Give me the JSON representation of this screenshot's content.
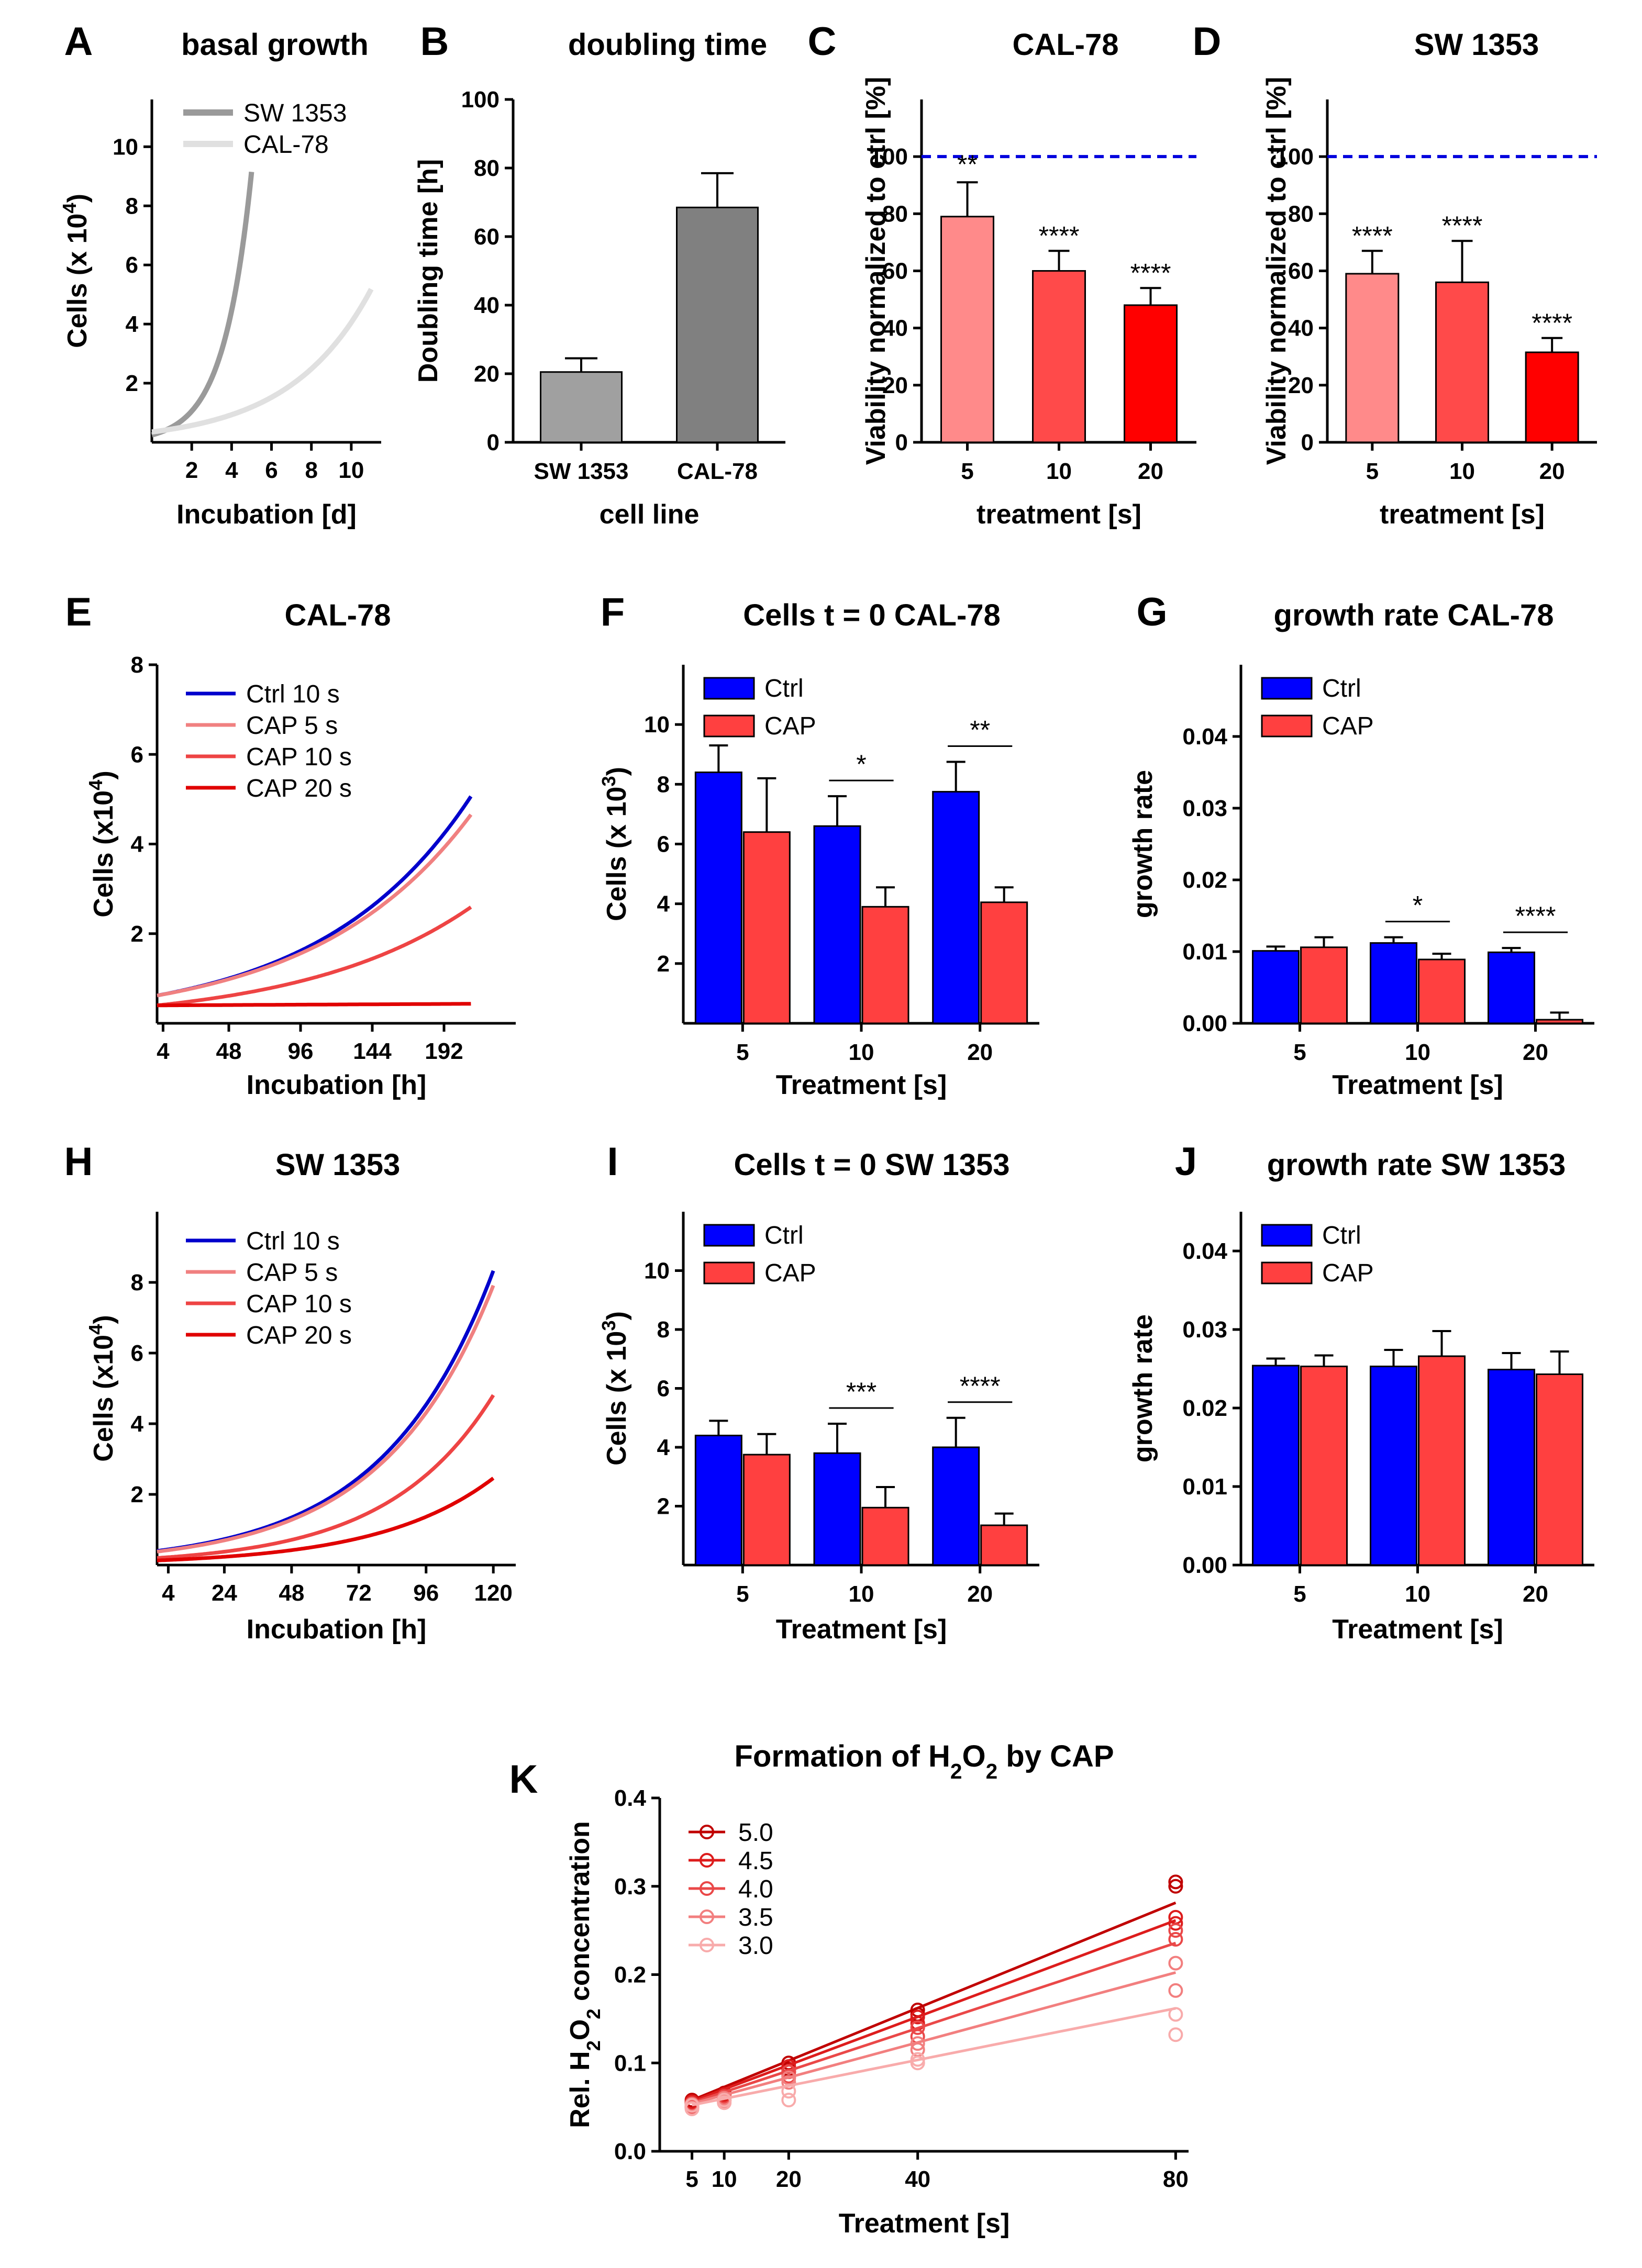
{
  "chart_data": [
    {
      "id": "A",
      "type": "line",
      "letter": "A",
      "title": "basal growth",
      "xlabel": "Incubation [d]",
      "ylabel": "Cells (x 10",
      "ylabel_sup": "4",
      "ylabel_tail": ")",
      "xlim": [
        0,
        11.5
      ],
      "ylim": [
        0,
        11.6
      ],
      "xticks": [
        2,
        4,
        6,
        8,
        10
      ],
      "yticks": [
        2,
        4,
        6,
        8,
        10
      ],
      "series": [
        {
          "name": "SW 1353",
          "color": "#9a9a9a",
          "model": "exp",
          "y0": 0.25,
          "k": 0.72,
          "x_start": 0,
          "x_end": 5
        },
        {
          "name": "CAL-78",
          "color": "#e0e0e0",
          "model": "exp",
          "y0": 0.35,
          "k": 0.245,
          "x_start": 0,
          "x_end": 11
        }
      ]
    },
    {
      "id": "B",
      "type": "bar",
      "letter": "B",
      "title": "doubling time",
      "xlabel": "cell line",
      "ylabel": "Doubling time [h]",
      "categories": [
        "SW 1353",
        "CAL-78"
      ],
      "values": [
        20.5,
        68.5
      ],
      "errors": [
        4,
        10
      ],
      "colors": [
        "#a0a0a0",
        "#808080"
      ],
      "ylim": [
        0,
        100
      ],
      "yticks": [
        0,
        20,
        40,
        60,
        80,
        100
      ]
    },
    {
      "id": "C",
      "type": "bar",
      "letter": "C",
      "title": "CAL-78",
      "xlabel": "treatment [s]",
      "ylabel": "Viability normalized to ctrl [%]",
      "categories": [
        "5",
        "10",
        "20"
      ],
      "values": [
        79,
        60,
        48
      ],
      "errors": [
        12,
        7,
        6
      ],
      "colors": [
        "#ff8a8a",
        "#ff4a4a",
        "#ff0000"
      ],
      "significance": [
        "**",
        "****",
        "****"
      ],
      "ylim": [
        0,
        120
      ],
      "yticks": [
        0,
        20,
        40,
        60,
        80,
        100
      ],
      "reference_line": 100
    },
    {
      "id": "D",
      "type": "bar",
      "letter": "D",
      "title": "SW 1353",
      "xlabel": "treatment [s]",
      "ylabel": "Viability normalized to ctrl [%]",
      "categories": [
        "5",
        "10",
        "20"
      ],
      "values": [
        59,
        56,
        31.5
      ],
      "errors": [
        8,
        14.5,
        5
      ],
      "colors": [
        "#ff8a8a",
        "#ff4a4a",
        "#ff0000"
      ],
      "significance": [
        "****",
        "****",
        "****"
      ],
      "ylim": [
        0,
        120
      ],
      "yticks": [
        0,
        20,
        40,
        60,
        80,
        100
      ],
      "reference_line": 100
    },
    {
      "id": "E",
      "type": "line",
      "letter": "E",
      "title": "CAL-78",
      "xlabel": "Incubation [h]",
      "ylabel": "Cells (x10",
      "ylabel_sup": "4",
      "ylabel_tail": ")",
      "xlim": [
        0,
        240
      ],
      "ylim": [
        0,
        8
      ],
      "xticks": [
        4,
        48,
        96,
        144,
        192
      ],
      "yticks": [
        2,
        4,
        6,
        8
      ],
      "series": [
        {
          "name": "Ctrl 10 s",
          "color": "#0000cc",
          "model": "exp",
          "y0": 0.62,
          "k": 0.01,
          "x_start": 0,
          "x_end": 210
        },
        {
          "name": "CAP 5 s",
          "color": "#f08080",
          "model": "exp",
          "y0": 0.62,
          "k": 0.0096,
          "x_start": 0,
          "x_end": 210
        },
        {
          "name": "CAP 10 s",
          "color": "#ee4444",
          "model": "exp",
          "y0": 0.4,
          "k": 0.0089,
          "x_start": 0,
          "x_end": 210
        },
        {
          "name": "CAP 20 s",
          "color": "#e00000",
          "model": "exp",
          "y0": 0.4,
          "k": 0.0004,
          "x_start": 0,
          "x_end": 210
        }
      ]
    },
    {
      "id": "F",
      "type": "bar",
      "letter": "F",
      "title": "Cells t = 0 CAL-78",
      "xlabel": "Treatment [s]",
      "ylabel": "Cells (x 10",
      "ylabel_sup": "3",
      "ylabel_tail": ")",
      "categories": [
        "5",
        "10",
        "20"
      ],
      "series": [
        {
          "name": "Ctrl",
          "color": "#0000ff",
          "values": [
            8.4,
            6.6,
            7.75
          ],
          "errors": [
            0.9,
            1.0,
            1.0
          ]
        },
        {
          "name": "CAP",
          "color": "#ff4040",
          "values": [
            6.4,
            3.9,
            4.05
          ],
          "errors": [
            1.8,
            0.65,
            0.5
          ]
        }
      ],
      "significance": [
        {
          "category": 1,
          "label": "*"
        },
        {
          "category": 2,
          "label": "**"
        }
      ],
      "ylim": [
        0,
        12
      ],
      "yticks": [
        2,
        4,
        6,
        8,
        10
      ]
    },
    {
      "id": "G",
      "type": "bar",
      "letter": "G",
      "title": "growth rate CAL-78",
      "xlabel": "Treatment [s]",
      "ylabel": "growth rate",
      "categories": [
        "5",
        "10",
        "20"
      ],
      "series": [
        {
          "name": "Ctrl",
          "color": "#0000ff",
          "values": [
            0.0101,
            0.0112,
            0.0099
          ],
          "errors": [
            0.0006,
            0.0008,
            0.0006
          ]
        },
        {
          "name": "CAP",
          "color": "#ff4040",
          "values": [
            0.0106,
            0.0089,
            0.0005
          ],
          "errors": [
            0.0014,
            0.0008,
            0.001
          ]
        }
      ],
      "significance": [
        {
          "category": 1,
          "label": "*"
        },
        {
          "category": 2,
          "label": "****"
        }
      ],
      "ylim": [
        0,
        0.05
      ],
      "yticks": [
        0.0,
        0.01,
        0.02,
        0.03,
        0.04
      ],
      "tick_decimals": 2
    },
    {
      "id": "H",
      "type": "line",
      "letter": "H",
      "title": "SW 1353",
      "xlabel": "Incubation [h]",
      "ylabel": "Cells (x10",
      "ylabel_sup": "4",
      "ylabel_tail": ")",
      "xlim": [
        0,
        128
      ],
      "ylim": [
        0,
        10
      ],
      "xticks": [
        4,
        24,
        48,
        72,
        96,
        120
      ],
      "yticks": [
        2,
        4,
        6,
        8
      ],
      "series": [
        {
          "name": "Ctrl 10 s",
          "color": "#0000cc",
          "model": "exp",
          "y0": 0.4,
          "k": 0.0253,
          "x_start": 0,
          "x_end": 120
        },
        {
          "name": "CAP 5 s",
          "color": "#f08080",
          "model": "exp",
          "y0": 0.38,
          "k": 0.0253,
          "x_start": 0,
          "x_end": 120
        },
        {
          "name": "CAP 10 s",
          "color": "#ee4444",
          "model": "exp",
          "y0": 0.2,
          "k": 0.0265,
          "x_start": 0,
          "x_end": 120
        },
        {
          "name": "CAP 20 s",
          "color": "#e00000",
          "model": "exp",
          "y0": 0.13,
          "k": 0.0245,
          "x_start": 0,
          "x_end": 120
        }
      ]
    },
    {
      "id": "I",
      "type": "bar",
      "letter": "I",
      "title": "Cells t = 0 SW 1353",
      "xlabel": "Treatment [s]",
      "ylabel": "Cells (x 10",
      "ylabel_sup": "3",
      "ylabel_tail": ")",
      "categories": [
        "5",
        "10",
        "20"
      ],
      "series": [
        {
          "name": "Ctrl",
          "color": "#0000ff",
          "values": [
            4.4,
            3.8,
            4.0
          ],
          "errors": [
            0.5,
            1.0,
            1.0
          ]
        },
        {
          "name": "CAP",
          "color": "#ff4040",
          "values": [
            3.75,
            1.95,
            1.35
          ],
          "errors": [
            0.7,
            0.7,
            0.4
          ]
        }
      ],
      "significance": [
        {
          "category": 1,
          "label": "***"
        },
        {
          "category": 2,
          "label": "****"
        }
      ],
      "ylim": [
        0,
        12
      ],
      "yticks": [
        2,
        4,
        6,
        8,
        10
      ]
    },
    {
      "id": "J",
      "type": "bar",
      "letter": "J",
      "title": "growth rate SW 1353",
      "xlabel": "Treatment [s]",
      "ylabel": "growth rate",
      "categories": [
        "5",
        "10",
        "20"
      ],
      "series": [
        {
          "name": "Ctrl",
          "color": "#0000ff",
          "values": [
            0.0254,
            0.0253,
            0.0249
          ],
          "errors": [
            0.0009,
            0.0021,
            0.0021
          ]
        },
        {
          "name": "CAP",
          "color": "#ff4040",
          "values": [
            0.0253,
            0.0266,
            0.0243
          ],
          "errors": [
            0.0014,
            0.0032,
            0.0029
          ]
        }
      ],
      "ylim": [
        0,
        0.045
      ],
      "yticks": [
        0.0,
        0.01,
        0.02,
        0.03,
        0.04
      ],
      "tick_decimals": 2
    },
    {
      "id": "K",
      "type": "scatter",
      "letter": "K",
      "title": "Formation of H",
      "title_sub1": "2",
      "title_mid": "O",
      "title_sub2": "2",
      "title_tail": " by CAP",
      "xlabel": "Treatment [s]",
      "ylabel": "Rel. H",
      "ylabel_sub1": "2",
      "ylabel_mid": "O",
      "ylabel_sub2": "2",
      "ylabel_tail": " concentration",
      "xlim": [
        0,
        82
      ],
      "ylim": [
        0,
        0.4
      ],
      "xticks": [
        5,
        10,
        20,
        40,
        80
      ],
      "yticks": [
        0.0,
        0.1,
        0.2,
        0.3,
        0.4
      ],
      "tick_decimals": 1,
      "x": [
        5,
        10,
        20,
        40,
        80
      ],
      "series": [
        {
          "name": "5.0",
          "color": "#c00000",
          "points": [
            [
              5,
              0.055
            ],
            [
              5,
              0.058
            ],
            [
              10,
              0.062
            ],
            [
              10,
              0.066
            ],
            [
              20,
              0.093
            ],
            [
              20,
              0.1
            ],
            [
              40,
              0.155
            ],
            [
              40,
              0.16
            ],
            [
              80,
              0.3
            ],
            [
              80,
              0.305
            ]
          ],
          "fit": [
            0.043,
            0.00298
          ]
        },
        {
          "name": "4.5",
          "color": "#dd1c1c",
          "points": [
            [
              5,
              0.052
            ],
            [
              5,
              0.056
            ],
            [
              10,
              0.06
            ],
            [
              10,
              0.064
            ],
            [
              20,
              0.09
            ],
            [
              20,
              0.096
            ],
            [
              40,
              0.145
            ],
            [
              40,
              0.152
            ],
            [
              80,
              0.265
            ],
            [
              80,
              0.258
            ]
          ],
          "fit": [
            0.043,
            0.00273
          ]
        },
        {
          "name": "4.0",
          "color": "#ea4848",
          "points": [
            [
              5,
              0.05
            ],
            [
              5,
              0.054
            ],
            [
              10,
              0.058
            ],
            [
              10,
              0.062
            ],
            [
              20,
              0.085
            ],
            [
              20,
              0.09
            ],
            [
              40,
              0.13
            ],
            [
              40,
              0.14
            ],
            [
              80,
              0.25
            ],
            [
              80,
              0.24
            ]
          ],
          "fit": [
            0.043,
            0.00241
          ]
        },
        {
          "name": "3.5",
          "color": "#f27f7f",
          "points": [
            [
              5,
              0.049
            ],
            [
              5,
              0.053
            ],
            [
              10,
              0.057
            ],
            [
              10,
              0.06
            ],
            [
              20,
              0.078
            ],
            [
              20,
              0.083
            ],
            [
              40,
              0.115
            ],
            [
              40,
              0.122
            ],
            [
              80,
              0.213
            ],
            [
              80,
              0.182
            ]
          ],
          "fit": [
            0.044,
            0.00198
          ]
        },
        {
          "name": "3.0",
          "color": "#f8abab",
          "points": [
            [
              5,
              0.048
            ],
            [
              5,
              0.052
            ],
            [
              10,
              0.055
            ],
            [
              10,
              0.058
            ],
            [
              20,
              0.058
            ],
            [
              20,
              0.068
            ],
            [
              40,
              0.1
            ],
            [
              40,
              0.104
            ],
            [
              80,
              0.155
            ],
            [
              80,
              0.132
            ]
          ],
          "fit": [
            0.045,
            0.00146
          ]
        }
      ]
    }
  ]
}
